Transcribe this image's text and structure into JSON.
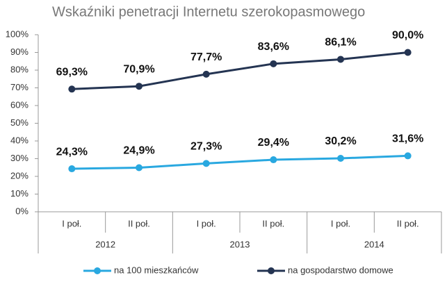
{
  "chart_data": {
    "type": "line",
    "title": "Wskaźniki penetracji Internetu szerokopasmowego",
    "categories": [
      "I poł.",
      "II poł.",
      "I poł.",
      "II poł.",
      "I poł.",
      "II poł."
    ],
    "category_groups": [
      "2012",
      "2013",
      "2014"
    ],
    "series": [
      {
        "name": "na 100 mieszkańców",
        "color": "#29a8e0",
        "values": [
          24.3,
          24.9,
          27.3,
          29.4,
          30.2,
          31.6
        ],
        "value_labels": [
          "24,3%",
          "24,9%",
          "27,3%",
          "29,4%",
          "30,2%",
          "31,6%"
        ]
      },
      {
        "name": "na gospodarstwo domowe",
        "color": "#243452",
        "values": [
          69.3,
          70.9,
          77.7,
          83.6,
          86.1,
          90.0
        ],
        "value_labels": [
          "69,3%",
          "70,9%",
          "77,7%",
          "83,6%",
          "86,1%",
          "90,0%"
        ]
      }
    ],
    "ylim": [
      0,
      100
    ],
    "yticks": [
      {
        "value": 0,
        "label": "0%"
      },
      {
        "value": 10,
        "label": "10%"
      },
      {
        "value": 20,
        "label": "20%"
      },
      {
        "value": 30,
        "label": "30%"
      },
      {
        "value": 40,
        "label": "40%"
      },
      {
        "value": 50,
        "label": "50%"
      },
      {
        "value": 60,
        "label": "60%"
      },
      {
        "value": 70,
        "label": "70%"
      },
      {
        "value": 80,
        "label": "80%"
      },
      {
        "value": 90,
        "label": "90%"
      },
      {
        "value": 100,
        "label": "100%"
      }
    ],
    "legend": "bottom"
  }
}
